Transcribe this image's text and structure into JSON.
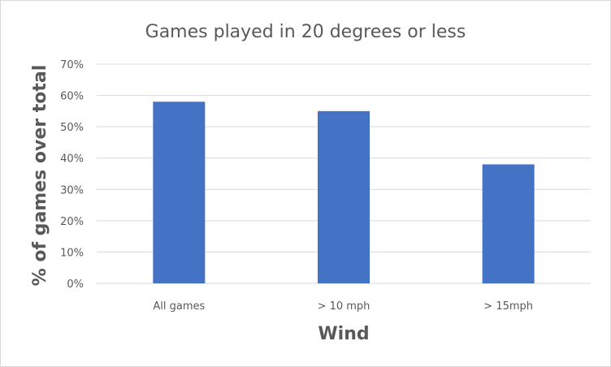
{
  "chart_data": {
    "type": "bar",
    "title": "Games played in 20 degrees or less",
    "xlabel": "Wind",
    "ylabel": "% of games over total",
    "categories": [
      "All games",
      "> 10 mph",
      "> 15mph"
    ],
    "values": [
      58,
      55,
      38
    ],
    "ylim": [
      0,
      70
    ],
    "yticks": [
      0,
      10,
      20,
      30,
      40,
      50,
      60,
      70
    ],
    "ytick_labels": [
      "0%",
      "10%",
      "20%",
      "30%",
      "40%",
      "50%",
      "60%",
      "70%"
    ],
    "grid": true,
    "legend": "none",
    "bar_color": "#4472c4",
    "grid_color": "#d9d9d9"
  }
}
